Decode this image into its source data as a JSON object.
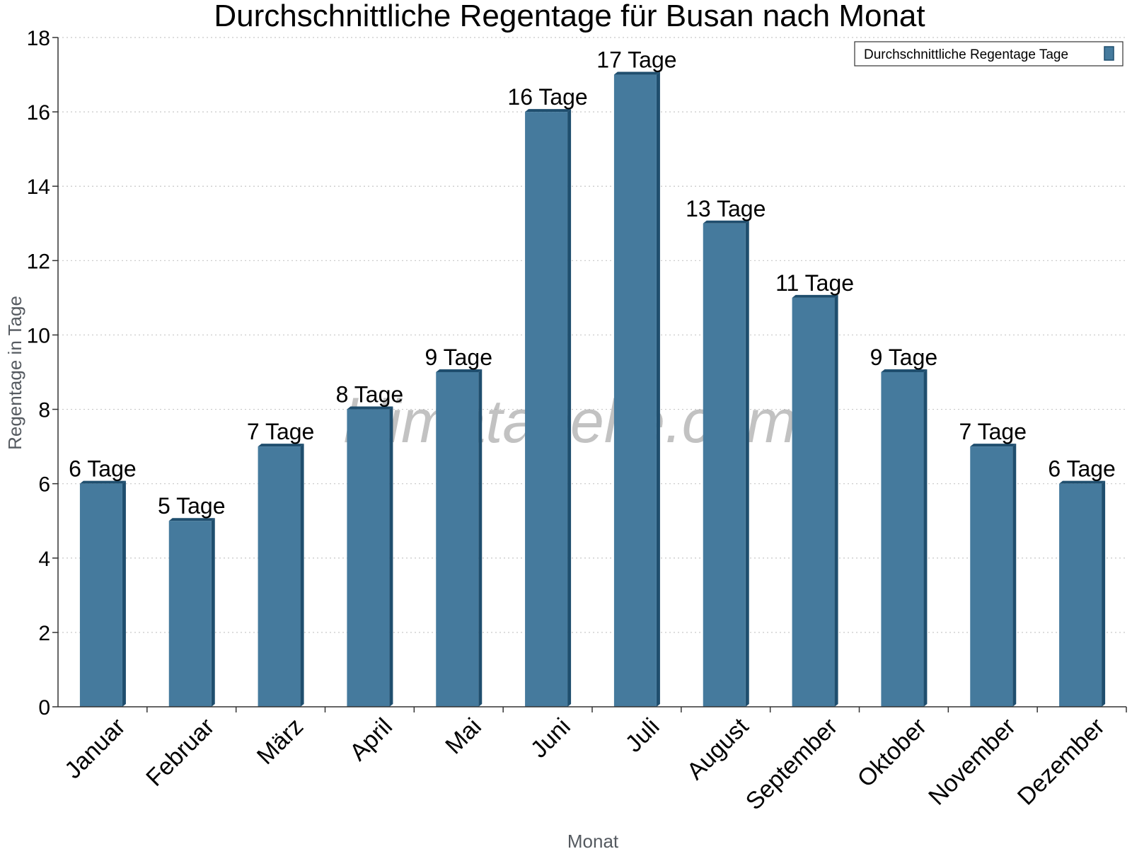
{
  "chart_data": {
    "type": "bar",
    "title": "Durchschnittliche Regentage für Busan nach Monat",
    "xlabel": "Monat",
    "ylabel": "Regentage in Tage",
    "categories": [
      "Januar",
      "Februar",
      "März",
      "April",
      "Mai",
      "Juni",
      "Juli",
      "August",
      "September",
      "Oktober",
      "November",
      "Dezember"
    ],
    "series": [
      {
        "name": "Durchschnittliche Regentage Tage",
        "values": [
          6,
          5,
          7,
          8,
          9,
          16,
          17,
          13,
          11,
          9,
          7,
          6
        ],
        "labels": [
          "6 Tage",
          "5 Tage",
          "7 Tage",
          "8 Tage",
          "9 Tage",
          "16 Tage",
          "17 Tage",
          "13 Tage",
          "11 Tage",
          "9 Tage",
          "7 Tage",
          "6 Tage"
        ],
        "color": "#457a9d"
      }
    ],
    "ylim": [
      0,
      18
    ],
    "yticks": [
      0,
      2,
      4,
      6,
      8,
      10,
      12,
      14,
      16,
      18
    ],
    "grid": true,
    "legend_position": "top-right",
    "watermark": "klimatabelle.com"
  }
}
